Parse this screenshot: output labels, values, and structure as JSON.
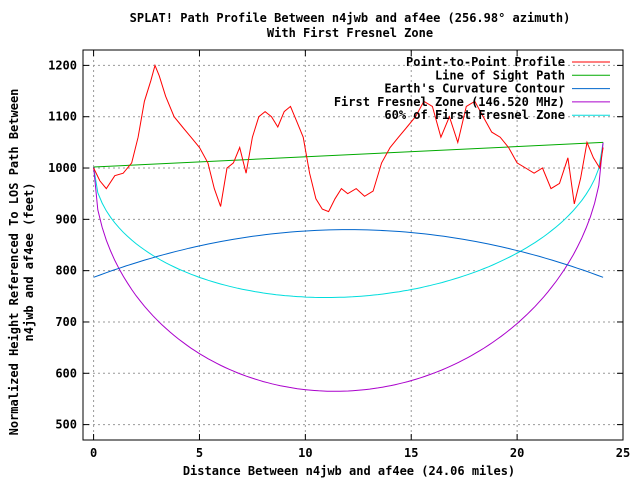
{
  "chart_data": {
    "type": "line",
    "title": "SPLAT! Path Profile Between n4jwb and af4ee (256.98° azimuth)",
    "subtitle": "With First Fresnel Zone",
    "xlabel": "Distance Between n4jwb and af4ee (24.06 miles)",
    "ylabel": "Normalized Height Referenced To LOS Path Between n4jwb and af4ee (feet)",
    "ylabel_lines": [
      "Normalized Height Referenced To LOS Path Between",
      "n4jwb and af4ee (feet)"
    ],
    "xlim": [
      -0.5,
      25
    ],
    "ylim": [
      470,
      1230
    ],
    "xticks": [
      0,
      5,
      10,
      15,
      20,
      25
    ],
    "yticks": [
      500,
      600,
      700,
      800,
      900,
      1000,
      1100,
      1200
    ],
    "grid": true,
    "legend_position": "top-right",
    "series": [
      {
        "name": "Point-to-Point Profile",
        "color": "#ff0000",
        "x": [
          0,
          0.3,
          0.6,
          1.0,
          1.4,
          1.8,
          2.1,
          2.4,
          2.7,
          2.9,
          3.1,
          3.4,
          3.8,
          4.2,
          4.6,
          5.0,
          5.4,
          5.7,
          6.0,
          6.3,
          6.6,
          6.9,
          7.2,
          7.5,
          7.8,
          8.1,
          8.4,
          8.7,
          9.0,
          9.3,
          9.6,
          9.9,
          10.2,
          10.5,
          10.8,
          11.1,
          11.4,
          11.7,
          12.0,
          12.4,
          12.8,
          13.2,
          13.6,
          14.0,
          14.4,
          14.8,
          15.2,
          15.6,
          16.0,
          16.4,
          16.8,
          17.2,
          17.6,
          18.0,
          18.4,
          18.8,
          19.2,
          19.6,
          20.0,
          20.4,
          20.8,
          21.2,
          21.6,
          22.0,
          22.4,
          22.7,
          23.0,
          23.3,
          23.6,
          23.9,
          24.06
        ],
        "values": [
          1000,
          975,
          960,
          985,
          990,
          1010,
          1060,
          1130,
          1170,
          1200,
          1180,
          1140,
          1100,
          1080,
          1060,
          1040,
          1010,
          960,
          925,
          1000,
          1010,
          1040,
          990,
          1060,
          1100,
          1110,
          1100,
          1080,
          1110,
          1120,
          1090,
          1060,
          990,
          940,
          920,
          915,
          940,
          960,
          950,
          960,
          945,
          955,
          1010,
          1040,
          1060,
          1080,
          1100,
          1130,
          1120,
          1060,
          1100,
          1050,
          1120,
          1130,
          1100,
          1070,
          1060,
          1040,
          1010,
          1000,
          990,
          1000,
          960,
          970,
          1020,
          930,
          980,
          1050,
          1020,
          1000,
          1040
        ]
      },
      {
        "name": "Line of Sight Path",
        "color": "#00aa00",
        "x": [
          0,
          24.06
        ],
        "values": [
          1002,
          1050
        ]
      },
      {
        "name": "Earth's Curvature Contour",
        "color": "#0066cc",
        "x": [
          0,
          12.03,
          24.06
        ],
        "values": [
          787,
          880,
          787
        ],
        "shape": "parabola"
      },
      {
        "name": "First Fresnel Zone (146.520 MHz)",
        "color": "#aa00cc",
        "x": [
          0,
          11.6,
          24.06
        ],
        "values": [
          1002,
          565,
          1050
        ],
        "shape": "fresnel"
      },
      {
        "name": "60% of First Fresnel Zone",
        "color": "#00dddd",
        "x": [
          0,
          11.6,
          24.06
        ],
        "values": [
          1002,
          748,
          1050
        ],
        "shape": "fresnel"
      }
    ]
  }
}
